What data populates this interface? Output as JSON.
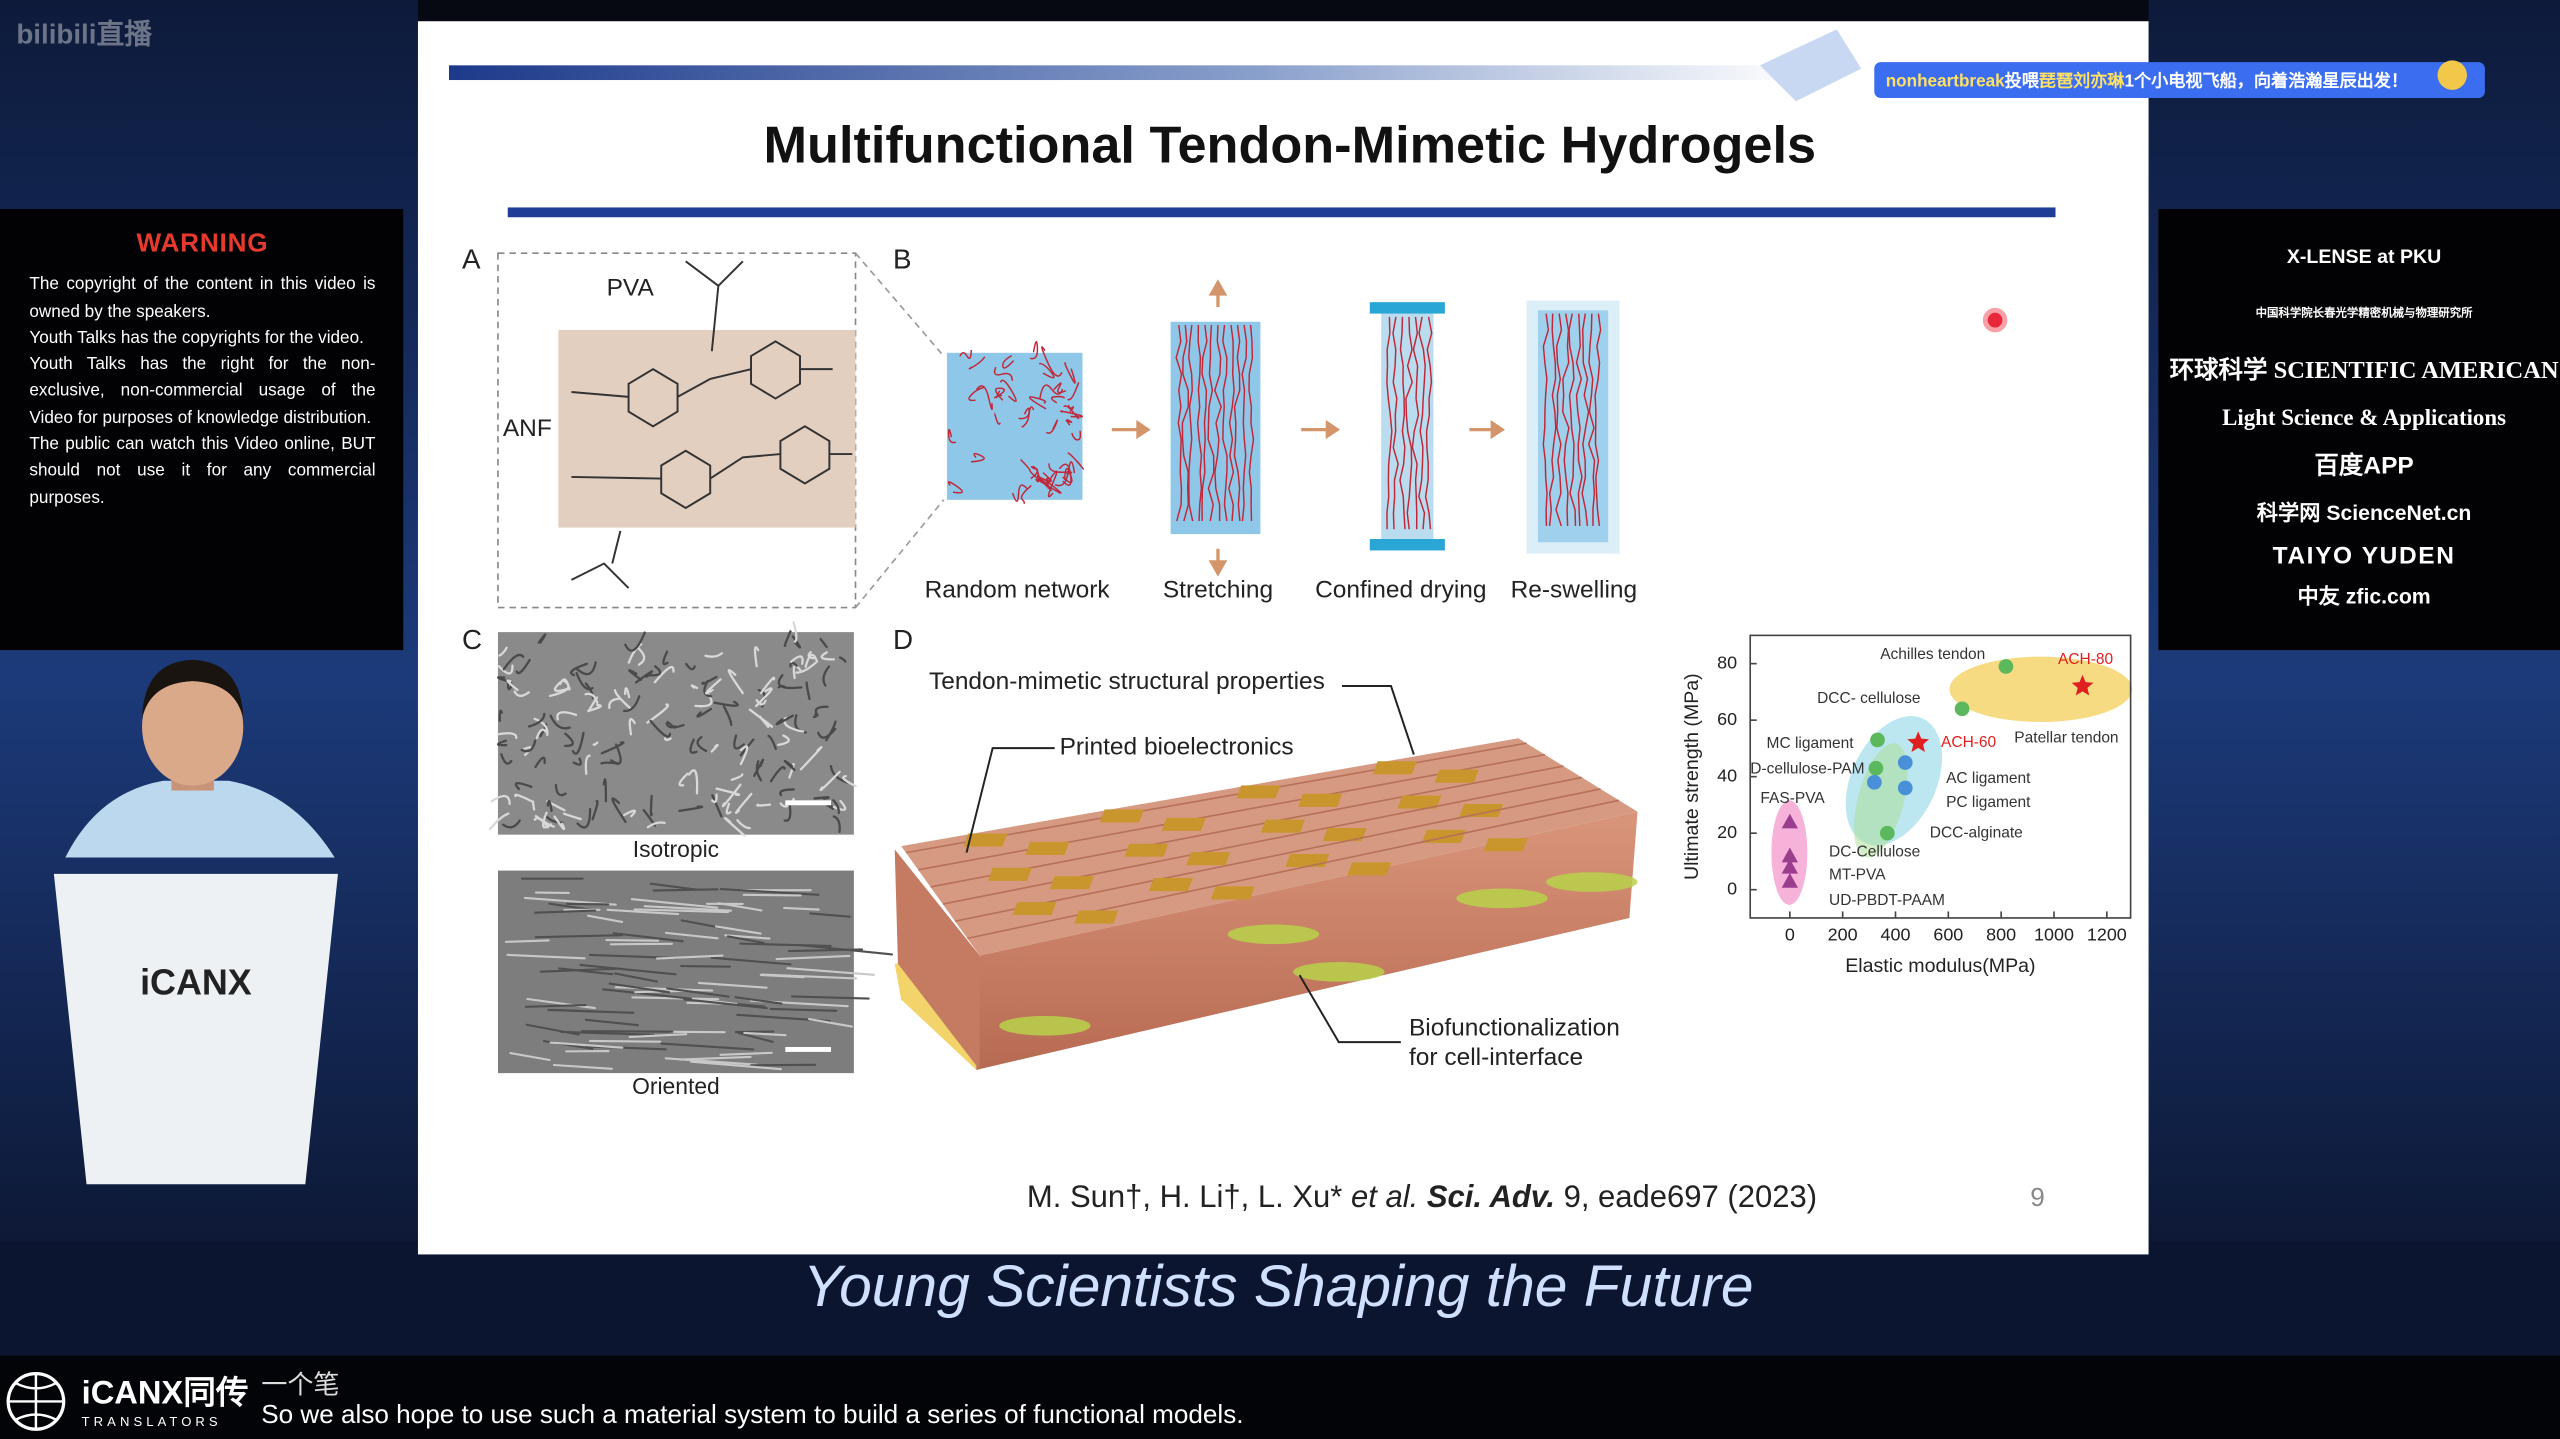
{
  "stream": {
    "logo": "bilibili直播",
    "danmaku": [
      "nonheartbreak",
      "投喂",
      "琵琶刘亦琳",
      "1个小电视飞船，向着浩瀚星辰出发！"
    ]
  },
  "warning": {
    "title": "WARNING",
    "paragraphs": [
      "The copyright of the content in this video is owned by the speakers.",
      "Youth Talks has the copyrights for the video.",
      "Youth Talks has the right for the non-exclusive, non-commercial usage of the Video for purposes of knowledge distribution.",
      "The public can watch this Video online, BUT should not use it for any commercial purposes."
    ]
  },
  "sponsors": [
    "X-LENSE at PKU",
    "中国科学院长春光学精密机械与物理研究所",
    "环球科学 SCIENTIFIC AMERICAN",
    "Light Science & Applications",
    "百度APP",
    "科学网 ScienceNet.cn",
    "TAIYO YUDEN",
    "中友 zfic.com"
  ],
  "podium": "iCANX",
  "banner": "Young Scientists Shaping the Future",
  "translators": {
    "brand": "iCANX同传",
    "sub": "TRANSLATORS"
  },
  "subtitle": {
    "chinese": "一个笔",
    "english": "So we also hope to use such a material system to build a series of functional models."
  },
  "slide": {
    "title": "Multifunctional Tendon-Mimetic Hydrogels",
    "panels": [
      "A",
      "B",
      "C",
      "D"
    ],
    "molecules": [
      "PVA",
      "ANF"
    ],
    "steps": [
      "Random network",
      "Stretching",
      "Confined drying",
      "Re-swelling"
    ],
    "sem": [
      "Isotropic",
      "Oriented"
    ],
    "annotations": [
      "Tendon-mimetic structural properties",
      "Printed bioelectronics",
      "Biofunctionalization",
      "for cell-interface"
    ],
    "citation": {
      "authors": "M. Sun†, H. Li†, L. Xu*",
      "etal": "et al.",
      "journal": "Sci. Adv.",
      "ref": "9, eade697 (2023)"
    },
    "page": "9",
    "chart": {
      "type": "scatter",
      "xlabel": "Elastic modulus(MPa)",
      "ylabel": "Ultimate strength (MPa)",
      "xlim": [
        -150,
        1290
      ],
      "ylim": [
        -10,
        90
      ],
      "xticks": [
        0,
        200,
        400,
        600,
        800,
        1000,
        1200
      ],
      "yticks": [
        0,
        20,
        40,
        60,
        80
      ],
      "points": [
        {
          "label": "Achilles tendon",
          "x": 818,
          "y": 79,
          "marker": "circle",
          "color": "#5cb85c"
        },
        {
          "label": "ACH-80",
          "x": 1108,
          "y": 72,
          "marker": "star",
          "color": "#e02020"
        },
        {
          "label": "Patellar tendon",
          "x": 652,
          "y": 64,
          "marker": "circle",
          "color": "#5cb85c"
        },
        {
          "label": "DCC- cellulose",
          "x": 332,
          "y": 53,
          "marker": "circle",
          "color": "#5cb85c"
        },
        {
          "label": "ACH-60",
          "x": 486,
          "y": 52,
          "marker": "star",
          "color": "#e02020"
        },
        {
          "label": "MC ligament",
          "x": 326,
          "y": 43,
          "marker": "circle",
          "color": "#5cb85c"
        },
        {
          "label": "AC ligament",
          "x": 437,
          "y": 45,
          "marker": "circle",
          "color": "#4a90d9"
        },
        {
          "label": "D-cellulose-PAM",
          "x": 320,
          "y": 38,
          "marker": "circle",
          "color": "#4a90d9"
        },
        {
          "label": "PC ligament",
          "x": 437,
          "y": 36,
          "marker": "circle",
          "color": "#4a90d9"
        },
        {
          "label": "DCC-alginate",
          "x": 369,
          "y": 20,
          "marker": "circle",
          "color": "#5cb85c"
        },
        {
          "label": "FAS-PVA",
          "x": 0,
          "y": 24,
          "marker": "triangle",
          "color": "#9b3d8f"
        },
        {
          "label": "DC-Cellulose",
          "x": 0,
          "y": 12,
          "marker": "triangle",
          "color": "#9b3d8f"
        },
        {
          "label": "MT-PVA",
          "x": 0,
          "y": 8,
          "marker": "triangle",
          "color": "#9b3d8f"
        },
        {
          "label": "UD-PBDT-PAAM",
          "x": 0,
          "y": 3,
          "marker": "triangle",
          "color": "#9b3d8f"
        }
      ]
    }
  }
}
